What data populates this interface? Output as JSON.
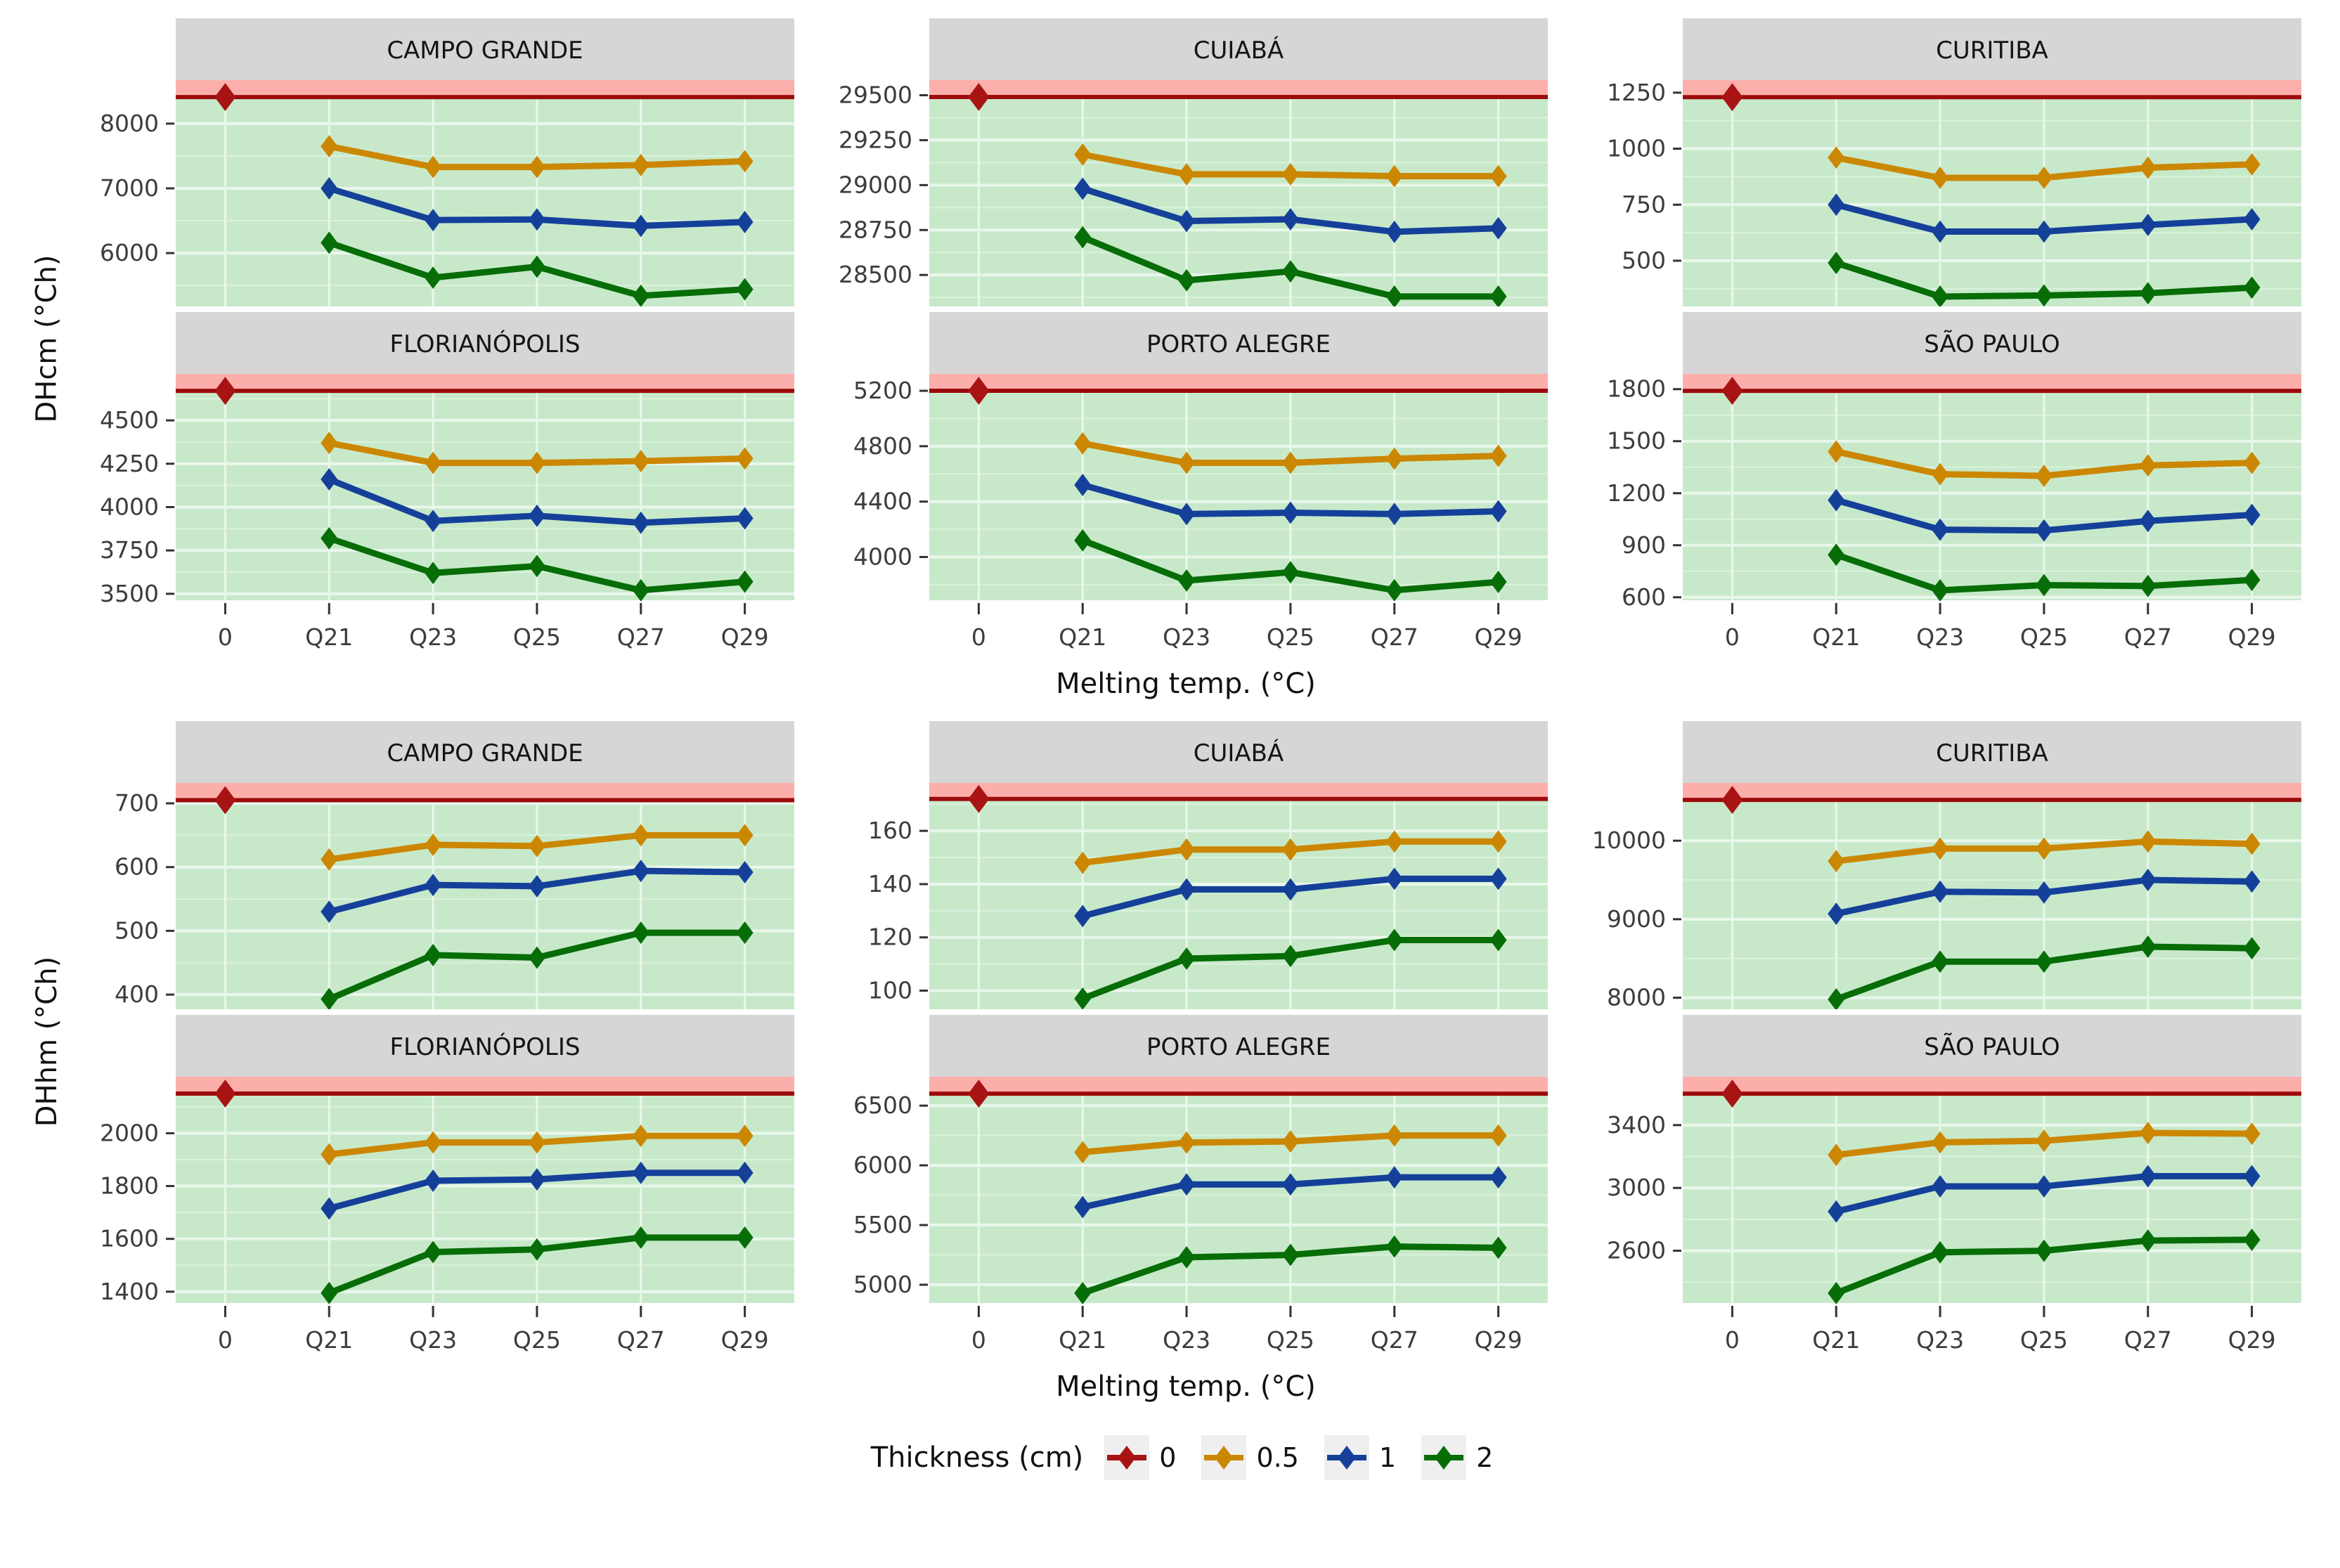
{
  "figure": {
    "x_title": "Melting temp. (°C)",
    "legend": {
      "title": "Thickness (cm)",
      "items": [
        {
          "label": "0",
          "series": "0"
        },
        {
          "label": "0.5",
          "series": "0.5"
        },
        {
          "label": "1",
          "series": "1"
        },
        {
          "label": "2",
          "series": "2"
        }
      ]
    }
  },
  "colors": {
    "series": {
      "0": "#A81414",
      "0.5": "#CC8702",
      "1": "#15409A",
      "2": "#076D07"
    },
    "ref_line": "#9C0B0B",
    "band_above": "#FCAFAA",
    "band_below": "#C7E9CA",
    "grid_major": "#EAF7EB",
    "grid_minor": "#DCF1DE",
    "strip_bg": "#D6D6D6",
    "strip_text": "#141414",
    "tick_text": "#3C3C3C",
    "tick_mark": "#333333",
    "legend_key_bg": "#EFEFEF"
  },
  "chart_data": [
    {
      "type": "line",
      "ylabel": "DHcm (°Ch)",
      "xlabel": "Melting temp. (°C)",
      "legend_title": "Thickness (cm)",
      "x_categories": [
        "0",
        "Q21",
        "Q23",
        "Q25",
        "Q27",
        "Q29"
      ],
      "note": "Series '0' is a horizontal reference line with a single point at category 0; other series have points at Q21..Q29",
      "panels": [
        {
          "title": "CAMPO GRANDE",
          "ylim": [
            5176,
            8672
          ],
          "yticks": [
            8000,
            7000,
            6000
          ],
          "thickness0_value": 8410,
          "series": {
            "0.5": [
              7650,
              7330,
              7330,
              7360,
              7420
            ],
            "1": [
              7000,
              6510,
              6520,
              6420,
              6480
            ],
            "2": [
              6160,
              5620,
              5790,
              5340,
              5440
            ]
          }
        },
        {
          "title": "CUIABÁ",
          "ylim": [
            28325,
            29584
          ],
          "yticks": [
            29500,
            29250,
            29000,
            28750,
            28500
          ],
          "thickness0_value": 29490,
          "series": {
            "0.5": [
              29170,
              29060,
              29060,
              29050,
              29050
            ],
            "1": [
              28980,
              28800,
              28810,
              28740,
              28760
            ],
            "2": [
              28710,
              28470,
              28520,
              28380,
              28380
            ]
          }
        },
        {
          "title": "CURITIBA",
          "ylim": [
            296,
            1306
          ],
          "yticks": [
            1250,
            1000,
            750,
            500
          ],
          "thickness0_value": 1230,
          "series": {
            "0.5": [
              960,
              870,
              870,
              915,
              930
            ],
            "1": [
              750,
              630,
              630,
              660,
              685
            ],
            "2": [
              490,
              340,
              345,
              355,
              380
            ]
          }
        },
        {
          "title": "FLORIANÓPOLIS",
          "ylim": [
            3463,
            4768
          ],
          "yticks": [
            4500,
            4250,
            4000,
            3750,
            3500
          ],
          "thickness0_value": 4670,
          "series": {
            "0.5": [
              4370,
              4255,
              4255,
              4265,
              4280
            ],
            "1": [
              4160,
              3920,
              3950,
              3910,
              3935
            ],
            "2": [
              3820,
              3620,
              3660,
              3520,
              3570
            ]
          }
        },
        {
          "title": "PORTO ALEGRE",
          "ylim": [
            3688,
            5322
          ],
          "yticks": [
            5200,
            4800,
            4400,
            4000
          ],
          "thickness0_value": 5200,
          "series": {
            "0.5": [
              4820,
              4680,
              4680,
              4710,
              4730
            ],
            "1": [
              4520,
              4310,
              4320,
              4310,
              4330
            ],
            "2": [
              4120,
              3830,
              3890,
              3760,
              3820
            ]
          }
        },
        {
          "title": "SÃO PAULO",
          "ylim": [
            583,
            1888
          ],
          "yticks": [
            1800,
            1500,
            1200,
            900,
            600
          ],
          "thickness0_value": 1790,
          "series": {
            "0.5": [
              1440,
              1310,
              1300,
              1360,
              1375
            ],
            "1": [
              1160,
              990,
              985,
              1040,
              1075
            ],
            "2": [
              845,
              640,
              670,
              665,
              700
            ]
          }
        }
      ]
    },
    {
      "type": "line",
      "ylabel": "DHhm (°Ch)",
      "xlabel": "Melting temp. (°C)",
      "legend_title": "Thickness (cm)",
      "x_categories": [
        "0",
        "Q21",
        "Q23",
        "Q25",
        "Q27",
        "Q29"
      ],
      "note": "Series '0' is a horizontal reference line with a single point at category 0; other series have points at Q21..Q29",
      "panels": [
        {
          "title": "CAMPO GRANDE",
          "ylim": [
            377,
            732
          ],
          "yticks": [
            700,
            600,
            500,
            400
          ],
          "thickness0_value": 705,
          "series": {
            "0.5": [
              612,
              635,
              633,
              650,
              650
            ],
            "1": [
              530,
              572,
              570,
              594,
              592
            ],
            "2": [
              393,
              462,
              458,
              497,
              497
            ]
          }
        },
        {
          "title": "CUIABÁ",
          "ylim": [
            93,
            178
          ],
          "yticks": [
            160,
            140,
            120,
            100
          ],
          "thickness0_value": 172,
          "series": {
            "0.5": [
              148,
              153,
              153,
              156,
              156
            ],
            "1": [
              128,
              138,
              138,
              142,
              142
            ],
            "2": [
              97,
              112,
              113,
              119,
              119
            ]
          }
        },
        {
          "title": "CURITIBA",
          "ylim": [
            7853,
            10736
          ],
          "yticks": [
            10000,
            9000,
            8000
          ],
          "thickness0_value": 10520,
          "series": {
            "0.5": [
              9740,
              9900,
              9900,
              9990,
              9960
            ],
            "1": [
              9070,
              9350,
              9340,
              9500,
              9480
            ],
            "2": [
              7980,
              8460,
              8460,
              8650,
              8630
            ]
          }
        },
        {
          "title": "FLORIANÓPOLIS",
          "ylim": [
            1357,
            2214
          ],
          "yticks": [
            2000,
            1800,
            1600,
            1400
          ],
          "thickness0_value": 2150,
          "series": {
            "0.5": [
              1920,
              1965,
              1965,
              1990,
              1990
            ],
            "1": [
              1715,
              1820,
              1825,
              1850,
              1850
            ],
            "2": [
              1395,
              1550,
              1560,
              1605,
              1605
            ]
          }
        },
        {
          "title": "PORTO ALEGRE",
          "ylim": [
            4847,
            6742
          ],
          "yticks": [
            6500,
            6000,
            5500,
            5000
          ],
          "thickness0_value": 6600,
          "series": {
            "0.5": [
              6110,
              6190,
              6200,
              6250,
              6250
            ],
            "1": [
              5650,
              5840,
              5840,
              5900,
              5900
            ],
            "2": [
              4930,
              5230,
              5250,
              5320,
              5310
            ]
          }
        },
        {
          "title": "SÃO PAULO",
          "ylim": [
            2267,
            3708
          ],
          "yticks": [
            3400,
            3000,
            2600
          ],
          "thickness0_value": 3600,
          "series": {
            "0.5": [
              3210,
              3290,
              3300,
              3350,
              3345
            ],
            "1": [
              2850,
              3010,
              3010,
              3075,
              3075
            ],
            "2": [
              2330,
              2590,
              2600,
              2665,
              2670
            ]
          }
        }
      ]
    }
  ]
}
